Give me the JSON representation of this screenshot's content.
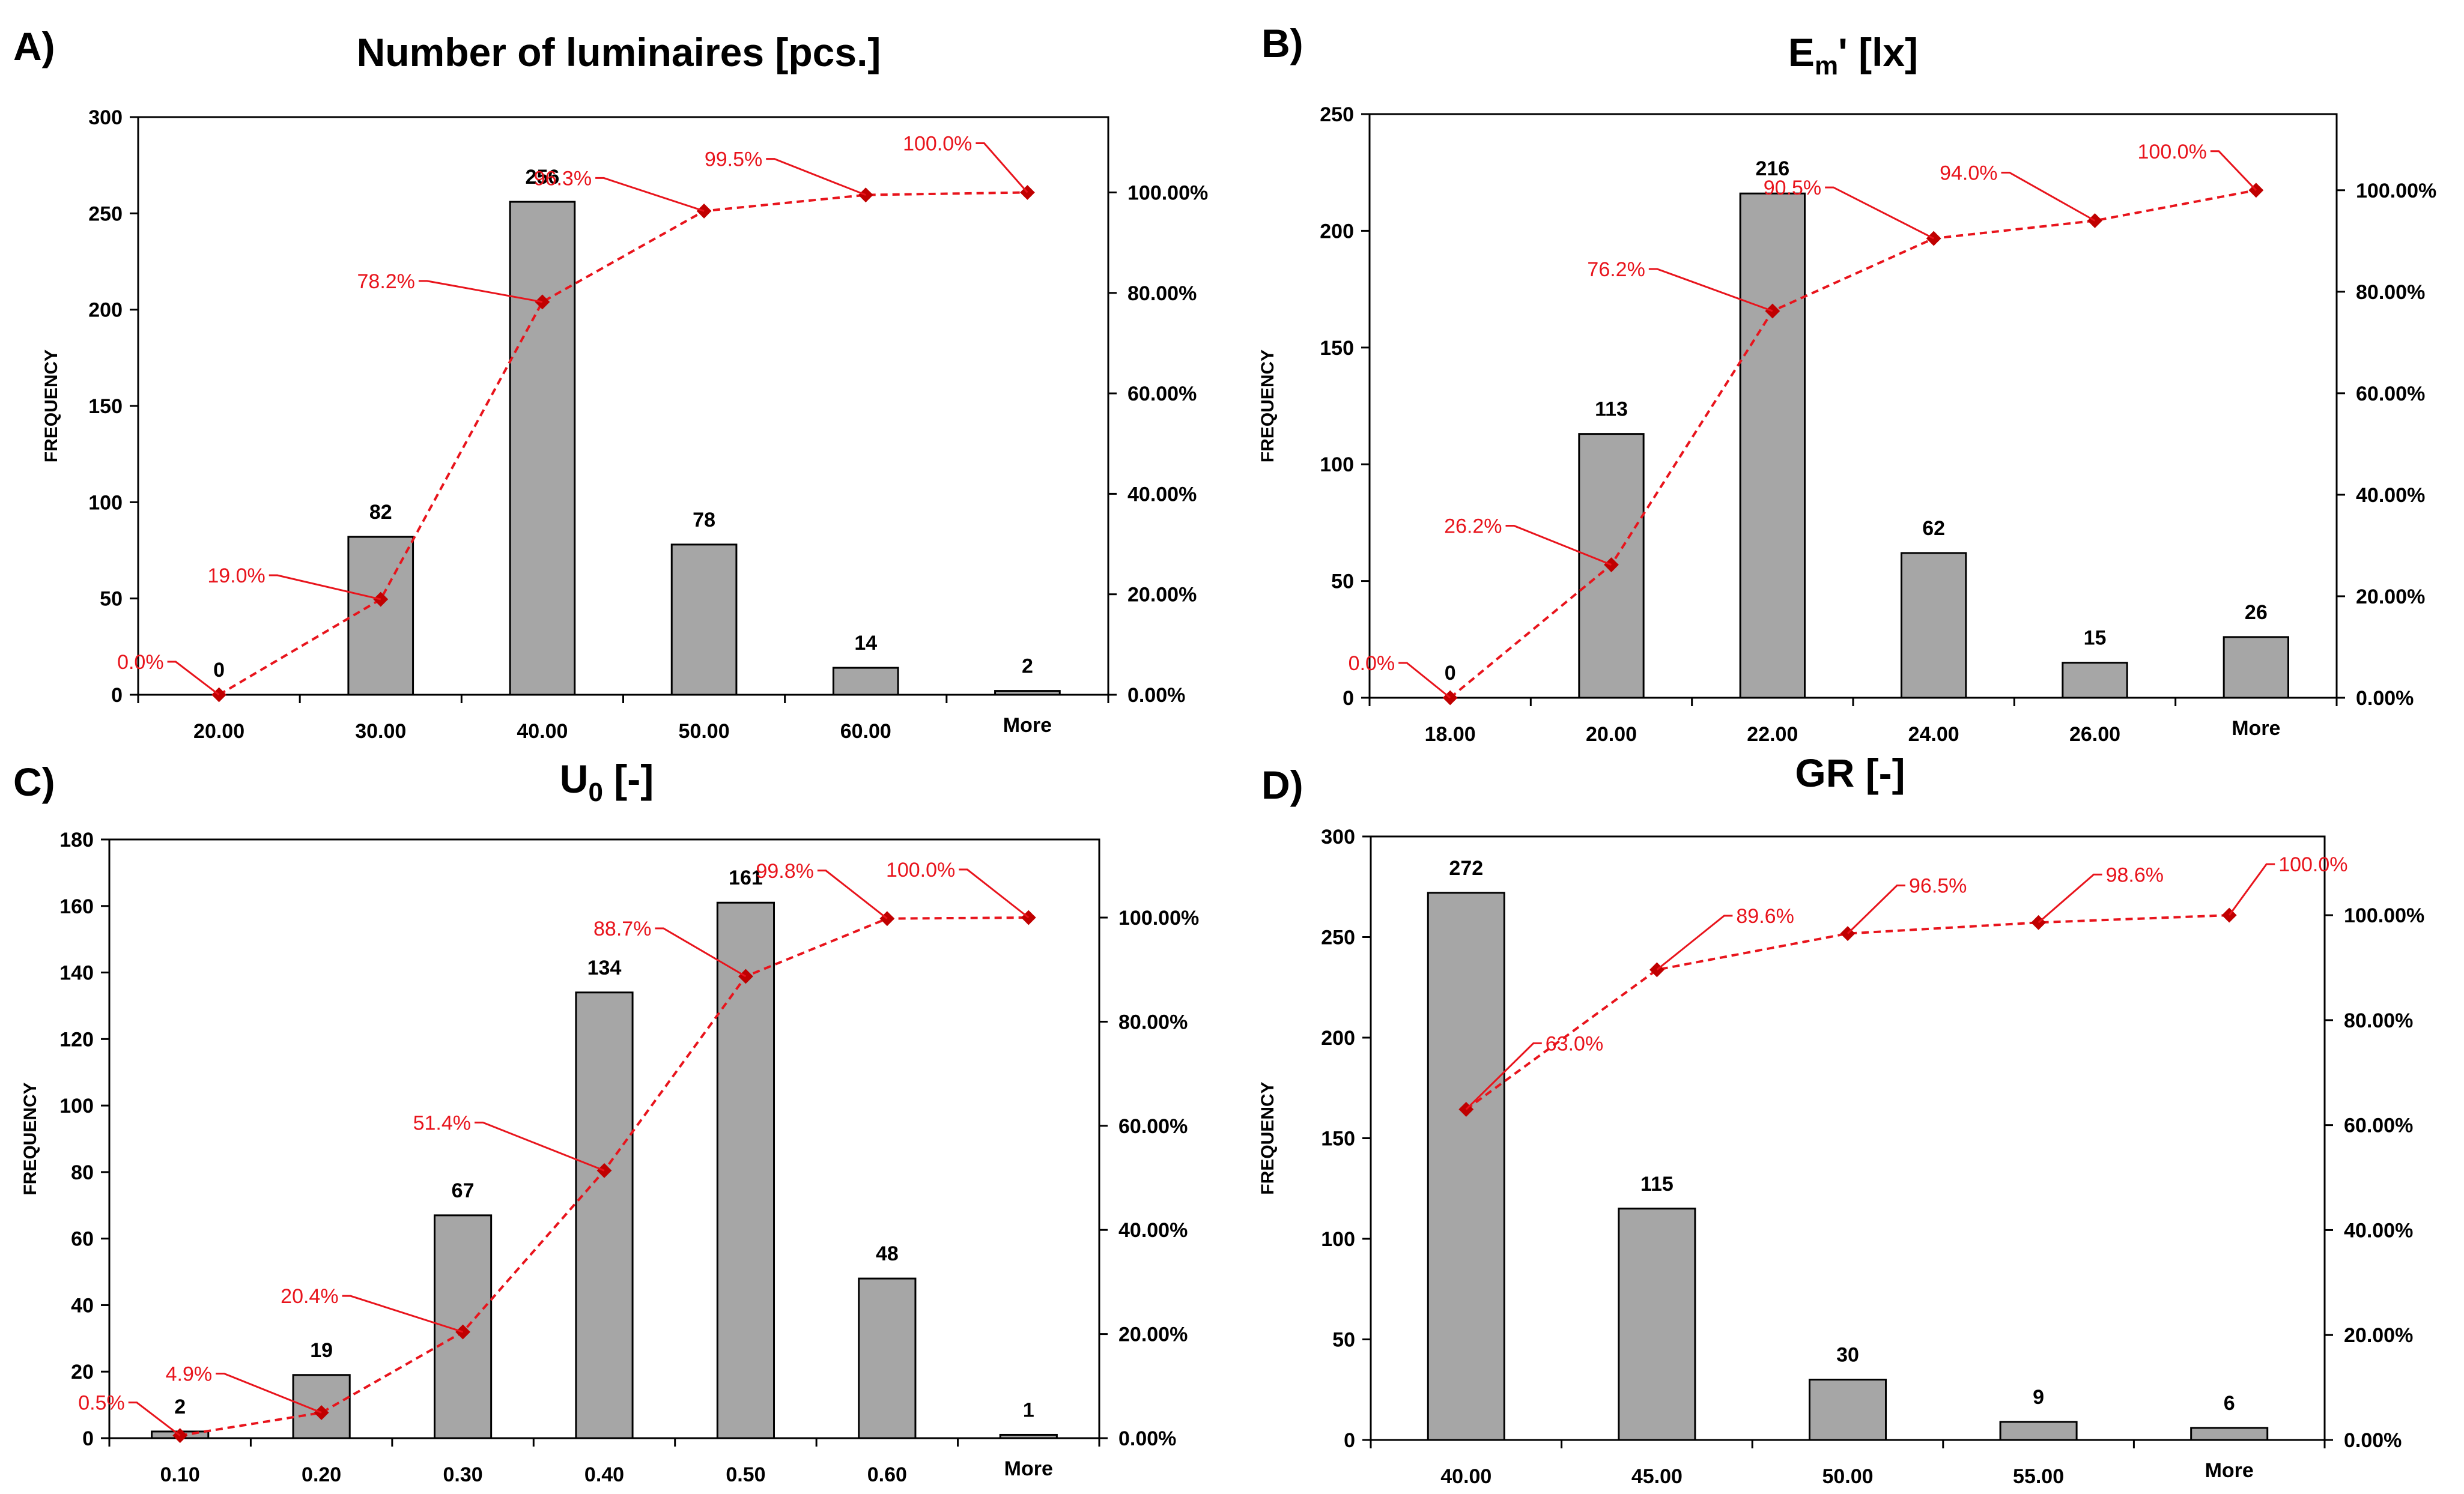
{
  "chart_data": [
    {
      "type": "bar",
      "panel": "A)",
      "title": "Number of luminaires [pcs.]",
      "title_parts": [
        {
          "text": "Number of luminaires [pcs.]"
        }
      ],
      "ylabel": "FREQUENCY",
      "xlabel": "",
      "categories": [
        "20.00",
        "30.00",
        "40.00",
        "50.00",
        "60.00",
        "More"
      ],
      "values": [
        0,
        82,
        256,
        78,
        14,
        2
      ],
      "ylim": [
        0,
        300
      ],
      "yticks": [
        0,
        50,
        100,
        150,
        200,
        250,
        300
      ],
      "secondary_axis": {
        "ticks": [
          "0.00%",
          "20.00%",
          "40.00%",
          "60.00%",
          "80.00%",
          "100.00%"
        ],
        "ylim": [
          0,
          115
        ]
      },
      "cumulative": {
        "values": [
          0.0,
          19.0,
          78.2,
          96.3,
          99.5,
          100.0
        ],
        "labels": [
          "0.0%",
          "19.0%",
          "78.2%",
          "96.3%",
          "99.5%",
          "100.0%"
        ]
      },
      "colors": {
        "bar": "#a6a6a6",
        "cumulative": "#e8141c"
      }
    },
    {
      "type": "bar",
      "panel": "B)",
      "title": "Em' [lx]",
      "title_parts": [
        {
          "text": "E"
        },
        {
          "text": "m",
          "sub": true
        },
        {
          "text": "' [lx]"
        }
      ],
      "ylabel": "FREQUENCY",
      "xlabel": "",
      "categories": [
        "18.00",
        "20.00",
        "22.00",
        "24.00",
        "26.00",
        "More"
      ],
      "values": [
        0,
        113,
        216,
        62,
        15,
        26
      ],
      "ylim": [
        0,
        250
      ],
      "yticks": [
        0,
        50,
        100,
        150,
        200,
        250
      ],
      "secondary_axis": {
        "ticks": [
          "0.00%",
          "20.00%",
          "40.00%",
          "60.00%",
          "80.00%",
          "100.00%"
        ],
        "ylim": [
          0,
          115
        ]
      },
      "cumulative": {
        "values": [
          0.0,
          26.2,
          76.2,
          90.5,
          94.0,
          100.0
        ],
        "labels": [
          "0.0%",
          "26.2%",
          "76.2%",
          "90.5%",
          "94.0%",
          "100.0%"
        ]
      },
      "colors": {
        "bar": "#a6a6a6",
        "cumulative": "#e8141c"
      }
    },
    {
      "type": "bar",
      "panel": "C)",
      "title": "U0 [-]",
      "title_parts": [
        {
          "text": "U"
        },
        {
          "text": "0",
          "sub": true
        },
        {
          "text": " [-]"
        }
      ],
      "ylabel": "FREQUENCY",
      "xlabel": "",
      "categories": [
        "0.10",
        "0.20",
        "0.30",
        "0.40",
        "0.50",
        "0.60",
        "More"
      ],
      "values": [
        2,
        19,
        67,
        134,
        161,
        48,
        1
      ],
      "ylim": [
        0,
        180
      ],
      "yticks": [
        0,
        20,
        40,
        60,
        80,
        100,
        120,
        140,
        160,
        180
      ],
      "secondary_axis": {
        "ticks": [
          "0.00%",
          "20.00%",
          "40.00%",
          "60.00%",
          "80.00%",
          "100.00%"
        ],
        "ylim": [
          0,
          115
        ]
      },
      "cumulative": {
        "values": [
          0.5,
          4.9,
          20.4,
          51.4,
          88.7,
          99.8,
          100.0
        ],
        "labels": [
          "0.5%",
          "4.9%",
          "20.4%",
          "51.4%",
          "88.7%",
          "99.8%",
          "100.0%"
        ]
      },
      "colors": {
        "bar": "#a6a6a6",
        "cumulative": "#e8141c"
      }
    },
    {
      "type": "bar",
      "panel": "D)",
      "title": "GR [-]",
      "title_parts": [
        {
          "text": "GR [-]"
        }
      ],
      "ylabel": "FREQUENCY",
      "xlabel": "",
      "categories": [
        "40.00",
        "45.00",
        "50.00",
        "55.00",
        "More"
      ],
      "values": [
        272,
        115,
        30,
        9,
        6
      ],
      "ylim": [
        0,
        300
      ],
      "yticks": [
        0,
        50,
        100,
        150,
        200,
        250,
        300
      ],
      "secondary_axis": {
        "ticks": [
          "0.00%",
          "20.00%",
          "40.00%",
          "60.00%",
          "80.00%",
          "100.00%"
        ],
        "ylim": [
          0,
          115
        ]
      },
      "cumulative": {
        "values": [
          63.0,
          89.6,
          96.5,
          98.6,
          100.0
        ],
        "labels": [
          "63.0%",
          "89.6%",
          "96.5%",
          "98.6%",
          "100.0%"
        ]
      },
      "colors": {
        "bar": "#a6a6a6",
        "cumulative": "#e8141c"
      }
    }
  ]
}
